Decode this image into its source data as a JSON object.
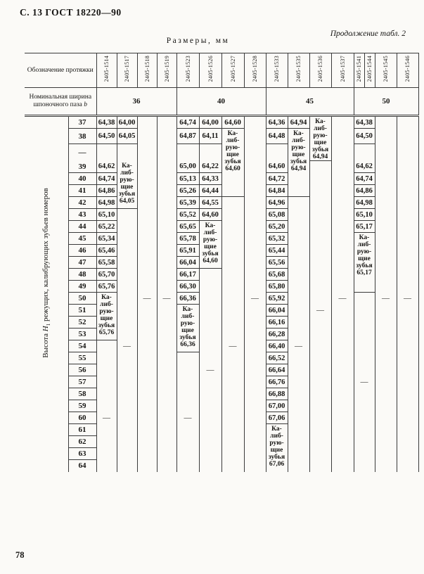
{
  "page": {
    "header_left": "С. 13 ГОСТ 18220—90",
    "continuation": "Продолжение табл. 2",
    "caption": "Размеры, мм",
    "page_number": "78"
  },
  "table": {
    "stub": {
      "designation_label": "Обозначение протяжки",
      "width_label": "Номинальная ширина шпоночного паза ",
      "width_label_var": "b",
      "axis_label_pre": "Высота ",
      "axis_label_var": "H",
      "axis_label_sub": "1",
      "axis_label_post": " режущих, калибрующих зубьев номеров"
    },
    "designations": [
      "2405-1514",
      "2405-1517",
      "2405-1518",
      "2405-1519",
      "2405-1523",
      "2405-1526",
      "2405-1527",
      "2405-1528",
      "2405-1533",
      "2405-1535",
      "2405-1536",
      "2405-1537",
      "2405-1541",
      "2405-1544",
      "2405-1545",
      "2405-1546"
    ],
    "groups": [
      {
        "label": "36",
        "span": 4
      },
      {
        "label": "40",
        "span": 4
      },
      {
        "label": "45",
        "span": 4
      },
      {
        "label": "50",
        "span": 4
      }
    ],
    "calib_lines": [
      "Ка-",
      "либ-",
      "рую-",
      "щие",
      "зубья"
    ],
    "rows": [
      {
        "id": "37",
        "label": "37"
      },
      {
        "id": "38",
        "label": "38"
      },
      {
        "id": "38a",
        "label": "—",
        "spacer": true
      },
      {
        "id": "39",
        "label": "39"
      },
      {
        "id": "40",
        "label": "40"
      },
      {
        "id": "41",
        "label": "41"
      },
      {
        "id": "42",
        "label": "42"
      },
      {
        "id": "43",
        "label": "43"
      },
      {
        "id": "44",
        "label": "44"
      },
      {
        "id": "45",
        "label": "45"
      },
      {
        "id": "46",
        "label": "46"
      },
      {
        "id": "47",
        "label": "47"
      },
      {
        "id": "48",
        "label": "48"
      },
      {
        "id": "49",
        "label": "49"
      },
      {
        "id": "50",
        "label": "50"
      },
      {
        "id": "51",
        "label": "51"
      },
      {
        "id": "52",
        "label": "52"
      },
      {
        "id": "53",
        "label": "53"
      },
      {
        "id": "54",
        "label": "54"
      },
      {
        "id": "55",
        "label": "55"
      },
      {
        "id": "56",
        "label": "56"
      },
      {
        "id": "57",
        "label": "57"
      },
      {
        "id": "58",
        "label": "58"
      },
      {
        "id": "59",
        "label": "59"
      },
      {
        "id": "60",
        "label": "60"
      },
      {
        "id": "61",
        "label": "61"
      },
      {
        "id": "62",
        "label": "62"
      },
      {
        "id": "63",
        "label": "63"
      },
      {
        "id": "64",
        "label": "64"
      }
    ],
    "data_columns": [
      {
        "designation": "2405-1514",
        "span": 1,
        "values": {
          "37": "64,38",
          "38": "64,50",
          "39": "64,62",
          "40": "64,74",
          "41": "64,86",
          "42": "64,98",
          "43": "65,10",
          "44": "65,22",
          "45": "65,34",
          "46": "65,46",
          "47": "65,58",
          "48": "65,70",
          "49": "65,76"
        },
        "calib": {
          "from": "50",
          "to": "53",
          "value": "65,76"
        },
        "dash_row": "60"
      },
      {
        "designation": "2405-1517",
        "span": 1,
        "values": {
          "37": "64,00",
          "38": "64,05"
        },
        "calib": {
          "from": "39",
          "to": "42",
          "value": "64,05"
        },
        "dash_row": "54"
      },
      {
        "designation": "2405-1518",
        "span": 1,
        "values": {},
        "calib": null,
        "dash_row": "50"
      },
      {
        "designation": "2405-1519",
        "span": 1,
        "values": {},
        "calib": null,
        "dash_row": "50"
      },
      {
        "designation": "2405-1523",
        "span": 1,
        "values": {
          "37": "64,74",
          "38": "64,87",
          "39": "65,00",
          "40": "65,13",
          "41": "65,26",
          "42": "65,39",
          "43": "65,52",
          "44": "65,65",
          "45": "65,78",
          "46": "65,91",
          "47": "66,04",
          "48": "66,17",
          "49": "66,30",
          "50": "66,36"
        },
        "calib": {
          "from": "51",
          "to": "54",
          "value": "66,36"
        },
        "dash_row": "60"
      },
      {
        "designation": "2405-1526",
        "span": 1,
        "values": {
          "37": "64,00",
          "38": "64,11",
          "39": "64,22",
          "40": "64,33",
          "41": "64,44",
          "42": "64,55",
          "43": "64,60"
        },
        "calib": {
          "from": "44",
          "to": "47",
          "value": "64,60"
        },
        "dash_row": "56"
      },
      {
        "designation": "2405-1527",
        "span": 1,
        "values": {
          "37": "64,60"
        },
        "calib": {
          "from": "38",
          "to": "41",
          "value": "64,60"
        },
        "dash_row": "54"
      },
      {
        "designation": "2405-1528",
        "span": 1,
        "values": {},
        "calib": null,
        "dash_row": "50"
      },
      {
        "designation": "2405-1533",
        "span": 1,
        "values": {
          "37": "64,36",
          "38": "64,48",
          "39": "64,60",
          "40": "64,72",
          "41": "64,84",
          "42": "64,96",
          "43": "65,08",
          "44": "65,20",
          "45": "65,32",
          "46": "65,44",
          "47": "65,56",
          "48": "65,68",
          "49": "65,80",
          "50": "65,92",
          "51": "66,04",
          "52": "66,16",
          "53": "66,28",
          "54": "66,40",
          "55": "66,52",
          "56": "66,64",
          "57": "66,76",
          "58": "66,88",
          "59": "67,00",
          "60": "67,06"
        },
        "calib": {
          "from": "61",
          "to": "64",
          "value": "67,06"
        },
        "dash_row": null
      },
      {
        "designation": "2405-1535",
        "span": 1,
        "values": {
          "37": "64,94"
        },
        "calib": {
          "from": "38",
          "to": "41",
          "value": "64,94"
        },
        "dash_row": "54"
      },
      {
        "designation": "2405-1536",
        "span": 1,
        "values": {},
        "calib": {
          "from": "37",
          "to": "38a",
          "value": "64,94"
        },
        "dash_row": "51"
      },
      {
        "designation": "2405-1537",
        "span": 1,
        "values": {},
        "calib": null,
        "dash_row": "50"
      },
      {
        "designation": "2405-1541 / 2405-1544",
        "span": 2,
        "values": {
          "37": "64,38",
          "38": "64,50",
          "39": "64,62",
          "40": "64,74",
          "41": "64,86",
          "42": "64,98",
          "43": "65,10",
          "44": "65,17"
        },
        "calib": {
          "from": "45",
          "to": "49",
          "value": "65,17"
        },
        "dash_row": "57"
      },
      {
        "designation": "2405-1545",
        "span": 1,
        "values": {},
        "calib": null,
        "dash_row": "50"
      },
      {
        "designation": "2405-1546",
        "span": 1,
        "values": {},
        "calib": null,
        "dash_row": "50"
      }
    ]
  }
}
